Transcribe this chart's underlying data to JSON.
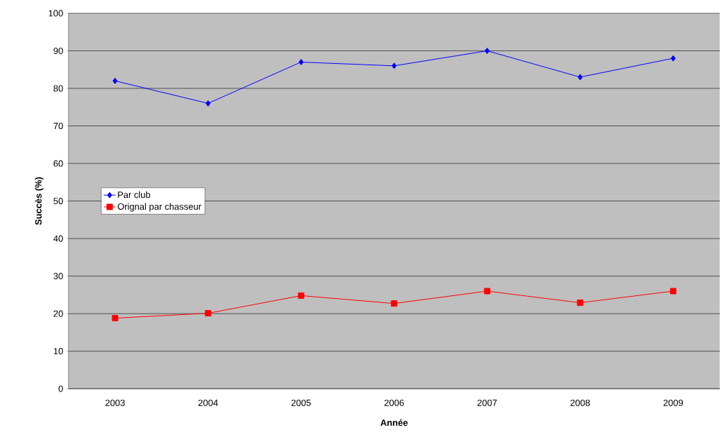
{
  "chart_data": {
    "type": "line",
    "xlabel": "Année",
    "ylabel": "Succès (%)",
    "categories": [
      "2003",
      "2004",
      "2005",
      "2006",
      "2007",
      "2008",
      "2009"
    ],
    "series": [
      {
        "name": "Par club",
        "color": "#0000ff",
        "marker": "diamond",
        "values": [
          82,
          76,
          87,
          86,
          90,
          83,
          88
        ]
      },
      {
        "name": "Orignal par chasseur",
        "color": "#ff0000",
        "marker": "square",
        "values": [
          18.8,
          20.1,
          24.8,
          22.7,
          26,
          22.9,
          26
        ]
      }
    ],
    "ylim": [
      0,
      100
    ],
    "yticks": [
      0,
      10,
      20,
      30,
      40,
      50,
      60,
      70,
      80,
      90,
      100
    ],
    "grid": "y",
    "legend": "center left",
    "line_style": "solid"
  }
}
